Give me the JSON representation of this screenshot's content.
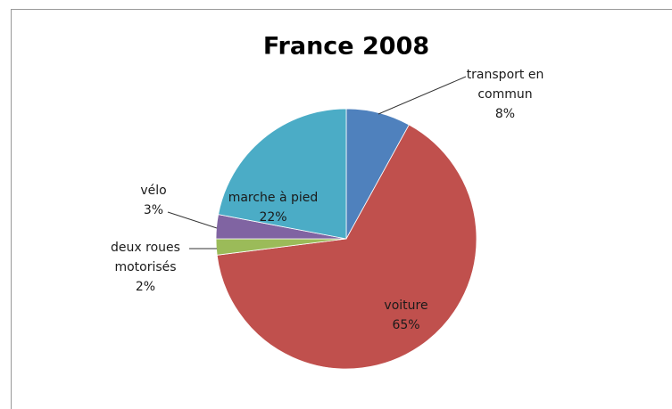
{
  "chart_data": {
    "type": "pie",
    "title": "France 2008",
    "categories": [
      "transport en commun",
      "voiture",
      "deux roues motorisés",
      "vélo",
      "marche à pied"
    ],
    "values": [
      8,
      65,
      2,
      3,
      22
    ],
    "value_labels": [
      "8%",
      "65%",
      "2%",
      "3%",
      "22%"
    ],
    "colors": [
      "#4f81bd",
      "#c0504d",
      "#9bbb59",
      "#8064a2",
      "#4bacc6"
    ]
  }
}
